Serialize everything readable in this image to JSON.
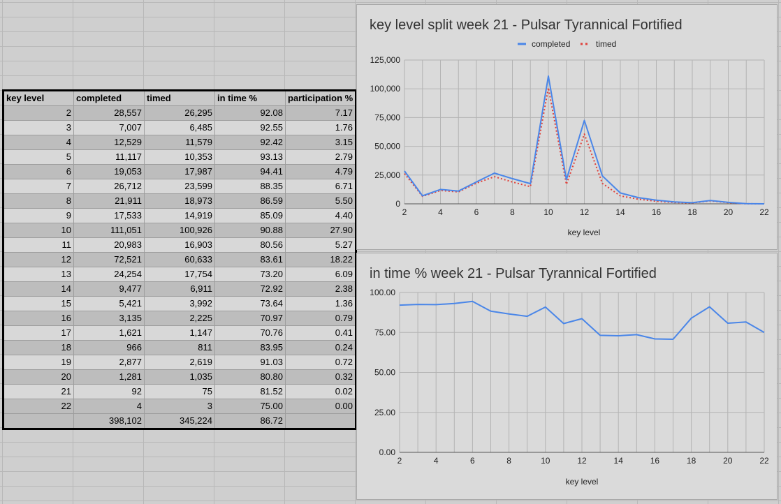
{
  "table": {
    "headers": [
      "key level",
      "completed",
      "timed",
      "in time %",
      "participation %"
    ],
    "rows": [
      [
        "2",
        "28,557",
        "26,295",
        "92.08",
        "7.17"
      ],
      [
        "3",
        "7,007",
        "6,485",
        "92.55",
        "1.76"
      ],
      [
        "4",
        "12,529",
        "11,579",
        "92.42",
        "3.15"
      ],
      [
        "5",
        "11,117",
        "10,353",
        "93.13",
        "2.79"
      ],
      [
        "6",
        "19,053",
        "17,987",
        "94.41",
        "4.79"
      ],
      [
        "7",
        "26,712",
        "23,599",
        "88.35",
        "6.71"
      ],
      [
        "8",
        "21,911",
        "18,973",
        "86.59",
        "5.50"
      ],
      [
        "9",
        "17,533",
        "14,919",
        "85.09",
        "4.40"
      ],
      [
        "10",
        "111,051",
        "100,926",
        "90.88",
        "27.90"
      ],
      [
        "11",
        "20,983",
        "16,903",
        "80.56",
        "5.27"
      ],
      [
        "12",
        "72,521",
        "60,633",
        "83.61",
        "18.22"
      ],
      [
        "13",
        "24,254",
        "17,754",
        "73.20",
        "6.09"
      ],
      [
        "14",
        "9,477",
        "6,911",
        "72.92",
        "2.38"
      ],
      [
        "15",
        "5,421",
        "3,992",
        "73.64",
        "1.36"
      ],
      [
        "16",
        "3,135",
        "2,225",
        "70.97",
        "0.79"
      ],
      [
        "17",
        "1,621",
        "1,147",
        "70.76",
        "0.41"
      ],
      [
        "18",
        "966",
        "811",
        "83.95",
        "0.24"
      ],
      [
        "19",
        "2,877",
        "2,619",
        "91.03",
        "0.72"
      ],
      [
        "20",
        "1,281",
        "1,035",
        "80.80",
        "0.32"
      ],
      [
        "21",
        "92",
        "75",
        "81.52",
        "0.02"
      ],
      [
        "22",
        "4",
        "3",
        "75.00",
        "0.00"
      ]
    ],
    "totals": [
      "",
      "398,102",
      "345,224",
      "86.72",
      ""
    ]
  },
  "chart_data": [
    {
      "type": "line",
      "title": "key level split week 21 - Pulsar Tyrannical Fortified",
      "xlabel": "key level",
      "ylabel": "",
      "x": [
        2,
        3,
        4,
        5,
        6,
        7,
        8,
        9,
        10,
        11,
        12,
        13,
        14,
        15,
        16,
        17,
        18,
        19,
        20,
        21,
        22
      ],
      "xlim": [
        2,
        22
      ],
      "xticks": [
        "2",
        "4",
        "6",
        "8",
        "10",
        "12",
        "14",
        "16",
        "18",
        "20",
        "22"
      ],
      "ylim": [
        0,
        125000
      ],
      "yticks": [
        "0",
        "25,000",
        "50,000",
        "75,000",
        "100,000",
        "125,000"
      ],
      "grid": true,
      "legend_position": "top",
      "series": [
        {
          "name": "completed",
          "color": "#4a86e8",
          "style": "solid",
          "values": [
            28557,
            7007,
            12529,
            11117,
            19053,
            26712,
            21911,
            17533,
            111051,
            20983,
            72521,
            24254,
            9477,
            5421,
            3135,
            1621,
            966,
            2877,
            1281,
            92,
            4
          ]
        },
        {
          "name": "timed",
          "color": "#e0403a",
          "style": "dotted",
          "values": [
            26295,
            6485,
            11579,
            10353,
            17987,
            23599,
            18973,
            14919,
            100926,
            16903,
            60633,
            17754,
            6911,
            3992,
            2225,
            1147,
            811,
            2619,
            1035,
            75,
            3
          ]
        }
      ]
    },
    {
      "type": "line",
      "title": "in time % week 21 - Pulsar Tyrannical Fortified",
      "xlabel": "key level",
      "ylabel": "",
      "x": [
        2,
        3,
        4,
        5,
        6,
        7,
        8,
        9,
        10,
        11,
        12,
        13,
        14,
        15,
        16,
        17,
        18,
        19,
        20,
        21,
        22
      ],
      "xlim": [
        2,
        22
      ],
      "xticks": [
        "2",
        "4",
        "6",
        "8",
        "10",
        "12",
        "14",
        "16",
        "18",
        "20",
        "22"
      ],
      "ylim": [
        0,
        100
      ],
      "yticks": [
        "0.00",
        "25.00",
        "50.00",
        "75.00",
        "100.00"
      ],
      "grid": true,
      "legend_position": "none",
      "series": [
        {
          "color": "#4a86e8",
          "style": "solid",
          "values": [
            92.08,
            92.55,
            92.42,
            93.13,
            94.41,
            88.35,
            86.59,
            85.09,
            90.88,
            80.56,
            83.61,
            73.2,
            72.92,
            73.64,
            70.97,
            70.76,
            83.95,
            91.03,
            80.8,
            81.52,
            75.0
          ]
        }
      ]
    }
  ]
}
